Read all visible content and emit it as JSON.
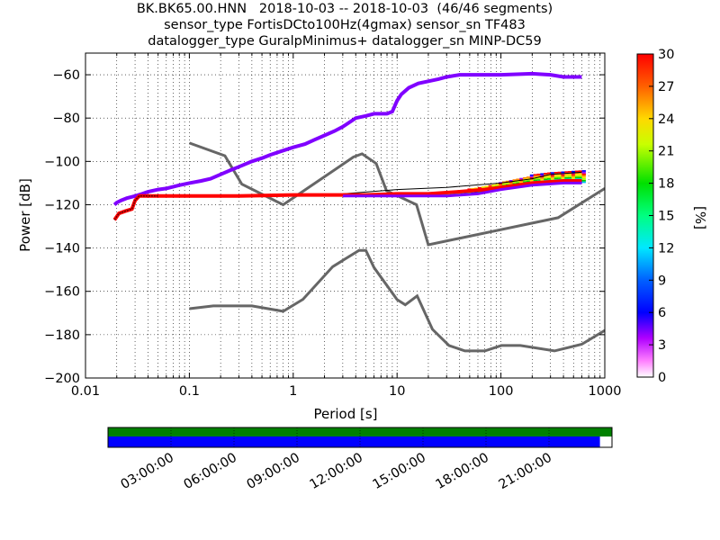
{
  "title_lines": [
    "BK.BK65.00.HNN   2018-10-03 -- 2018-10-03  (46/46 segments)",
    "sensor_type FortisDCto100Hz(4gmax) sensor_sn TF483",
    "datalogger_type GuralpMinimus+ datalogger_sn MINP-DC59"
  ],
  "chart_data": {
    "type": "heatmap",
    "xlabel": "Period [s]",
    "ylabel": "Power [dB]",
    "xscale": "log",
    "xlim": [
      0.01,
      1000
    ],
    "ylim": [
      -200,
      -50
    ],
    "xticks": [
      0.01,
      0.1,
      1,
      10,
      100,
      1000
    ],
    "xtick_labels": [
      "0.01",
      "0.1",
      "1",
      "10",
      "100",
      "1000"
    ],
    "yticks": [
      -200,
      -180,
      -160,
      -140,
      -120,
      -100,
      -80,
      -60
    ],
    "ytick_labels": [
      "−200",
      "−180",
      "−160",
      "−140",
      "−120",
      "−100",
      "−80",
      "−60"
    ],
    "grid": true,
    "colorbar": {
      "label": "[%]",
      "range": [
        0,
        30
      ],
      "ticks": [
        0,
        3,
        6,
        9,
        12,
        15,
        18,
        21,
        24,
        27,
        30
      ],
      "colormap": "pqlx"
    },
    "max_psd_curve": [
      [
        0.019,
        -120
      ],
      [
        0.02,
        -119
      ],
      [
        0.022,
        -118
      ],
      [
        0.025,
        -117
      ],
      [
        0.03,
        -116
      ],
      [
        0.035,
        -115
      ],
      [
        0.04,
        -114
      ],
      [
        0.05,
        -113
      ],
      [
        0.06,
        -112.5
      ],
      [
        0.08,
        -111
      ],
      [
        0.1,
        -110
      ],
      [
        0.13,
        -109
      ],
      [
        0.16,
        -108
      ],
      [
        0.2,
        -106
      ],
      [
        0.25,
        -104
      ],
      [
        0.3,
        -102.5
      ],
      [
        0.4,
        -100
      ],
      [
        0.5,
        -98.5
      ],
      [
        0.6,
        -97
      ],
      [
        0.8,
        -95
      ],
      [
        1,
        -93.5
      ],
      [
        1.3,
        -92
      ],
      [
        1.6,
        -90
      ],
      [
        2,
        -88
      ],
      [
        2.5,
        -86
      ],
      [
        3,
        -84
      ],
      [
        4,
        -80
      ],
      [
        5,
        -79
      ],
      [
        6,
        -78
      ],
      [
        8,
        -78
      ],
      [
        9,
        -77
      ],
      [
        10,
        -72
      ],
      [
        11,
        -69
      ],
      [
        13,
        -66
      ],
      [
        16,
        -64
      ],
      [
        20,
        -63
      ],
      [
        25,
        -62
      ],
      [
        30,
        -61
      ],
      [
        40,
        -60
      ],
      [
        60,
        -60
      ],
      [
        100,
        -60
      ],
      [
        200,
        -59.5
      ],
      [
        300,
        -60
      ],
      [
        400,
        -61
      ],
      [
        600,
        -61
      ]
    ],
    "mode_psd_curve": [
      [
        0.019,
        -127
      ],
      [
        0.021,
        -124
      ],
      [
        0.024,
        -123
      ],
      [
        0.028,
        -122
      ],
      [
        0.03,
        -118
      ],
      [
        0.033,
        -116
      ],
      [
        0.05,
        -116
      ],
      [
        0.1,
        -116
      ],
      [
        0.3,
        -116
      ],
      [
        1,
        -115.5
      ],
      [
        3,
        -115.5
      ],
      [
        5,
        -115.5
      ],
      [
        10,
        -115
      ],
      [
        20,
        -115
      ],
      [
        40,
        -114
      ],
      [
        70,
        -113
      ],
      [
        100,
        -112
      ],
      [
        200,
        -110
      ],
      [
        400,
        -109
      ],
      [
        600,
        -109
      ]
    ],
    "min_psd_curve": [
      [
        3,
        -116
      ],
      [
        10,
        -116
      ],
      [
        30,
        -116
      ],
      [
        60,
        -115
      ],
      [
        100,
        -113
      ],
      [
        200,
        -111
      ],
      [
        400,
        -110
      ],
      [
        600,
        -110
      ]
    ],
    "mean_psd_curve": [
      [
        0.035,
        -116
      ],
      [
        1,
        -116
      ],
      [
        3,
        -115
      ],
      [
        10,
        -113
      ],
      [
        30,
        -112
      ],
      [
        100,
        -110
      ],
      [
        200,
        -108
      ],
      [
        300,
        -106
      ],
      [
        600,
        -105
      ]
    ],
    "psd_band": {
      "start_period": 3,
      "end_period": 650,
      "lower": [
        [
          3,
          -116
        ],
        [
          10,
          -116
        ],
        [
          30,
          -116
        ],
        [
          60,
          -115
        ],
        [
          100,
          -113
        ],
        [
          200,
          -111
        ],
        [
          400,
          -110
        ],
        [
          650,
          -110
        ]
      ],
      "upper": [
        [
          3,
          -115
        ],
        [
          10,
          -114
        ],
        [
          30,
          -113
        ],
        [
          60,
          -111
        ],
        [
          100,
          -109
        ],
        [
          200,
          -106
        ],
        [
          300,
          -105
        ],
        [
          650,
          -104
        ]
      ]
    },
    "nhnm": [
      [
        0.1,
        -91.5
      ],
      [
        0.22,
        -97.4
      ],
      [
        0.32,
        -110.5
      ],
      [
        0.8,
        -120
      ],
      [
        3.8,
        -98
      ],
      [
        4.6,
        -96.5
      ],
      [
        6.3,
        -101
      ],
      [
        7.9,
        -113.5
      ],
      [
        15.4,
        -120
      ],
      [
        20,
        -138.5
      ],
      [
        354.8,
        -126
      ],
      [
        1000,
        -112.5
      ]
    ],
    "nlnm": [
      [
        0.1,
        -168
      ],
      [
        0.17,
        -166.7
      ],
      [
        0.4,
        -166.7
      ],
      [
        0.8,
        -169.2
      ],
      [
        1.24,
        -163.7
      ],
      [
        2.4,
        -148.6
      ],
      [
        4.3,
        -141.1
      ],
      [
        5,
        -141.1
      ],
      [
        6,
        -149
      ],
      [
        10,
        -163.8
      ],
      [
        12,
        -166.2
      ],
      [
        15.6,
        -162.1
      ],
      [
        21.9,
        -177.5
      ],
      [
        31.6,
        -185
      ],
      [
        45,
        -187.5
      ],
      [
        70,
        -187.5
      ],
      [
        101,
        -185
      ],
      [
        154,
        -185
      ],
      [
        328,
        -187.5
      ],
      [
        600,
        -184.4
      ],
      [
        1000,
        -178
      ]
    ]
  },
  "timeline": {
    "labels": [
      "03:00:00",
      "06:00:00",
      "09:00:00",
      "12:00:00",
      "15:00:00",
      "18:00:00",
      "21:00:00"
    ],
    "data_coverage": 0.976,
    "colors": {
      "availability": "#008000",
      "psd_segments": "#0000ff",
      "axis": "#000000"
    }
  },
  "colors": {
    "model_curve": "#666666",
    "max_curve": "#8000ff",
    "mode_curve": "#ff0000",
    "min_curve": "#000000"
  }
}
